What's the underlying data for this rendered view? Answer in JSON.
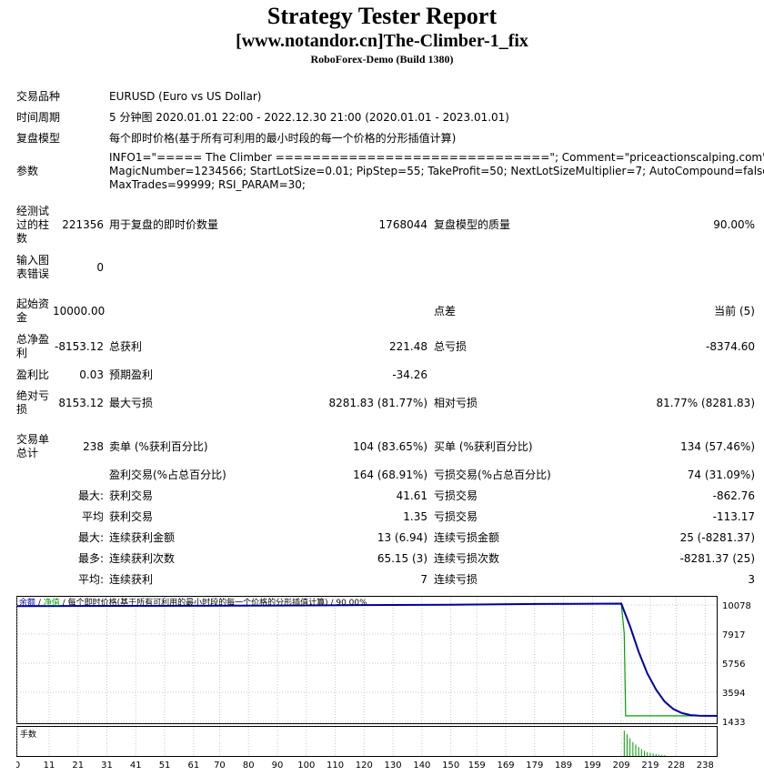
{
  "header": {
    "title": "Strategy Tester Report",
    "subtitle": "[www.notandor.cn]The-Climber-1_fix",
    "build": "RoboForex-Demo (Build 1380)"
  },
  "info": {
    "symbol_label": "交易品种",
    "symbol_value": "EURUSD (Euro vs US Dollar)",
    "period_label": "时间周期",
    "period_value": "5 分钟图 2020.01.01 22:00 - 2022.12.30 21:00 (2020.01.01 - 2023.01.01)",
    "model_label": "复盘模型",
    "model_value": "每个即时价格(基于所有可利用的最小时段的每一个价格的分形插值计算)",
    "params_label": "参数",
    "params_line1": "INFO1=\"===== The Climber ==============================\"; Comment=\"priceactionscalping.com\";",
    "params_line2": "MagicNumber=1234566; StartLotSize=0.01; PipStep=55; TakeProfit=50; NextLotSizeMultiplier=7; AutoCompound=false;",
    "params_line3": "MaxTrades=99999; RSI_PARAM=30;"
  },
  "stats": {
    "bars_label": "经测试过的柱数",
    "bars_value": "221356",
    "ticks_label": "用于复盘的即时价数量",
    "ticks_value": "1768044",
    "quality_label": "复盘模型的质量",
    "quality_value": "90.00%",
    "errors_label": "输入图表错误",
    "errors_value": "0",
    "deposit_label": "起始资金",
    "deposit_value": "10000.00",
    "spread_label": "点差",
    "spread_value": "当前 (5)",
    "net_label": "总净盈利",
    "net_value": "-8153.12",
    "gross_profit_label": "总获利",
    "gross_profit_value": "221.48",
    "gross_loss_label": "总亏损",
    "gross_loss_value": "-8374.60",
    "pf_label": "盈利比",
    "pf_value": "0.03",
    "expected_label": "预期盈利",
    "expected_value": "-34.26",
    "abs_dd_label": "绝对亏损",
    "abs_dd_value": "8153.12",
    "max_dd_label": "最大亏损",
    "max_dd_value": "8281.83 (81.77%)",
    "rel_dd_label": "相对亏损",
    "rel_dd_value": "81.77% (8281.83)",
    "total_trades_label": "交易单总计",
    "total_trades_value": "238",
    "short_label": "卖单 (%获利百分比)",
    "short_value": "104 (83.65%)",
    "long_label": "买单 (%获利百分比)",
    "long_value": "134 (57.46%)",
    "profit_trades_label": "盈利交易(%占总百分比)",
    "profit_trades_value": "164 (68.91%)",
    "loss_trades_label": "亏损交易(%占总百分比)",
    "loss_trades_value": "74 (31.09%)",
    "max_prefix": "最大:",
    "largest_profit_label": "获利交易",
    "largest_profit_value": "41.61",
    "largest_loss_label": "亏损交易",
    "largest_loss_value": "-862.76",
    "avg_prefix": "平均",
    "avg_profit_label": "获利交易",
    "avg_profit_value": "1.35",
    "avg_loss_label": "亏损交易",
    "avg_loss_value": "-113.17",
    "max_prefix2": "最大:",
    "cons_wins_amount_label": "连续获利金额",
    "cons_wins_amount_value": "13 (6.94)",
    "cons_loss_amount_label": "连续亏损金额",
    "cons_loss_amount_value": "25 (-8281.37)",
    "most_prefix": "最多:",
    "cons_wins_count_label": "连续获利次数",
    "cons_wins_count_value": "65.15 (3)",
    "cons_loss_count_label": "连续亏损次数",
    "cons_loss_count_value": "-8281.37 (25)",
    "avg_prefix2": "平均:",
    "avg_cons_wins_label": "连续获利",
    "avg_cons_wins_value": "7",
    "avg_cons_loss_label": "连续亏损",
    "avg_cons_loss_value": "3"
  },
  "chart_data": {
    "type": "line",
    "legend": {
      "balance": "余额",
      "sep1": " / ",
      "equity": "净值",
      "sep2": " / ",
      "model": "每个即时价格(基于所有可利用的最小时段的每一个价格的分形插值计算)",
      "sep3": " / ",
      "quality": "90.00%"
    },
    "lot_panel_label": "手数",
    "y_ticks": [
      10078,
      7917,
      5756,
      3594,
      1433
    ],
    "x_ticks": [
      0,
      11,
      21,
      31,
      41,
      51,
      61,
      70,
      80,
      90,
      100,
      110,
      120,
      130,
      140,
      150,
      159,
      169,
      179,
      189,
      199,
      209,
      219,
      228,
      238
    ],
    "ylim": [
      1433,
      10078
    ],
    "xlim": [
      0,
      242
    ],
    "series": [
      {
        "name": "余额",
        "color": "#0000a0",
        "x": [
          0,
          60,
          90,
          120,
          150,
          180,
          209,
          212,
          215,
          218,
          221,
          224,
          227,
          230,
          233,
          236,
          239,
          242
        ],
        "y": [
          10000,
          10020,
          10040,
          10070,
          10100,
          10150,
          10180,
          8500,
          6600,
          5000,
          3800,
          2900,
          2350,
          2050,
          1900,
          1850,
          1847,
          1847
        ]
      },
      {
        "name": "净值",
        "color": "#00a000",
        "x": [
          0,
          60,
          120,
          180,
          209,
          210,
          210.5,
          242
        ],
        "y": [
          10000,
          10020,
          10070,
          10150,
          10180,
          8000,
          1847,
          1847
        ]
      }
    ],
    "lots": {
      "x": [
        210,
        211,
        212,
        213,
        214,
        215,
        216,
        217,
        218,
        219,
        220,
        221,
        222,
        223,
        224
      ],
      "y": [
        1.0,
        0.85,
        0.7,
        0.55,
        0.45,
        0.35,
        0.27,
        0.2,
        0.15,
        0.12,
        0.09,
        0.07,
        0.05,
        0.04,
        0.03
      ]
    },
    "colors": {
      "balance": "#0000a0",
      "equity": "#00a000",
      "grid": "#c8c8c8"
    }
  }
}
